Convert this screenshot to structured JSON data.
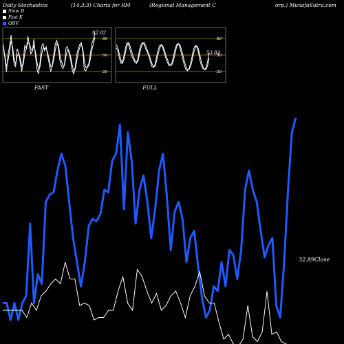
{
  "header": {
    "left": "Daily Stochastics",
    "params": "(14,3,3) Charts for RM",
    "company": "(Regional Management C",
    "site": "orp.) MunafaSutra.com"
  },
  "legend": [
    {
      "label": "Slow  D",
      "color": "#ffffff"
    },
    {
      "label": "Fast K",
      "color": "#ffffff"
    },
    {
      "label": "OBV",
      "color": "#1e5aff"
    }
  ],
  "colors": {
    "obv": "#1e5aff",
    "price": "#ffffff",
    "guide": "#b8860b",
    "panel_border": "#666666"
  },
  "chart_data": [
    {
      "type": "line",
      "panel": "FAST",
      "xlabel": "FAST",
      "ylim": [
        0,
        100
      ],
      "ytick_labels": [
        "80",
        "50",
        "20"
      ],
      "yticks": [
        80,
        50,
        20
      ],
      "last_value_label": "92.02",
      "series": [
        {
          "values": [
            70,
            42,
            18,
            52,
            66,
            88,
            58,
            32,
            28,
            62,
            54,
            36,
            18,
            40,
            68,
            62,
            86,
            70,
            52,
            58,
            80,
            48,
            22,
            14,
            36,
            66,
            72,
            58,
            66,
            48,
            34,
            18,
            30,
            52,
            72,
            78,
            64,
            40,
            30,
            24,
            32,
            64,
            66,
            54,
            42,
            22,
            14,
            26,
            50,
            62,
            70,
            74,
            58,
            22,
            20,
            28,
            34,
            52,
            72,
            80,
            92
          ]
        },
        {
          "values": [
            62,
            48,
            28,
            40,
            58,
            76,
            66,
            44,
            32,
            48,
            54,
            44,
            28,
            32,
            52,
            62,
            74,
            72,
            62,
            58,
            68,
            56,
            36,
            22,
            28,
            50,
            64,
            62,
            64,
            54,
            42,
            28,
            28,
            42,
            60,
            72,
            70,
            52,
            38,
            30,
            30,
            48,
            60,
            58,
            48,
            32,
            20,
            22,
            38,
            54,
            64,
            70,
            64,
            40,
            26,
            26,
            30,
            42,
            60,
            72,
            84
          ]
        }
      ]
    },
    {
      "type": "line",
      "panel": "FULL",
      "xlabel": "FULL",
      "ylim": [
        0,
        100
      ],
      "ytick_labels": [
        "80",
        "50",
        "20"
      ],
      "yticks": [
        80,
        50,
        20
      ],
      "last_value_label": "53.84",
      "series": [
        {
          "values": [
            64,
            58,
            44,
            34,
            36,
            50,
            64,
            74,
            70,
            58,
            48,
            42,
            36,
            34,
            44,
            60,
            70,
            74,
            70,
            62,
            56,
            48,
            38,
            28,
            26,
            32,
            46,
            60,
            68,
            70,
            64,
            54,
            44,
            36,
            30,
            30,
            36,
            48,
            62,
            70,
            72,
            66,
            54,
            42,
            30,
            22,
            20,
            24,
            34,
            48,
            62,
            68,
            66,
            56,
            40,
            30,
            24,
            22,
            26,
            38,
            54
          ]
        },
        {
          "values": [
            70,
            64,
            52,
            40,
            34,
            42,
            56,
            68,
            74,
            66,
            56,
            46,
            40,
            36,
            38,
            52,
            64,
            72,
            74,
            68,
            60,
            52,
            44,
            34,
            28,
            28,
            38,
            52,
            62,
            70,
            68,
            60,
            50,
            42,
            34,
            30,
            32,
            40,
            54,
            66,
            72,
            70,
            62,
            50,
            38,
            28,
            22,
            22,
            28,
            40,
            54,
            64,
            68,
            62,
            50,
            36,
            28,
            22,
            22,
            30,
            44
          ]
        }
      ]
    },
    {
      "type": "line",
      "panel": "OBV",
      "ylim": [
        0,
        100
      ],
      "last_value_label": "32.89Close",
      "series": [
        {
          "name": "OBV",
          "values": [
            17,
            17,
            10,
            17,
            10,
            17,
            20,
            50,
            17,
            29,
            25,
            59,
            62,
            63,
            72,
            79,
            74,
            59,
            44,
            34,
            24,
            34,
            49,
            52,
            51,
            54,
            64,
            63,
            76,
            79,
            91,
            56,
            88,
            76,
            50,
            64,
            70,
            59,
            44,
            56,
            72,
            79,
            61,
            39,
            55,
            59,
            52,
            34,
            44,
            47,
            32,
            19,
            11,
            14,
            24,
            22,
            34,
            24,
            39,
            37,
            27,
            39,
            64,
            72,
            64,
            59,
            47,
            36,
            41,
            44,
            16,
            11,
            34,
            64,
            88,
            94
          ]
        },
        {
          "name": "Close",
          "values": [
            14,
            14,
            14,
            14,
            14,
            11,
            17,
            14,
            20,
            22,
            25,
            27,
            25,
            34,
            27,
            27,
            16,
            17,
            16,
            10,
            11,
            11,
            14,
            14,
            22,
            28,
            17,
            14,
            31,
            28,
            22,
            17,
            21,
            14,
            16,
            20,
            22,
            17,
            11,
            20,
            24,
            30,
            20,
            17,
            17,
            9,
            2,
            4,
            0,
            -1,
            2,
            16,
            3,
            1,
            5,
            22,
            4,
            5,
            1,
            0,
            -3,
            -4
          ]
        }
      ]
    }
  ]
}
